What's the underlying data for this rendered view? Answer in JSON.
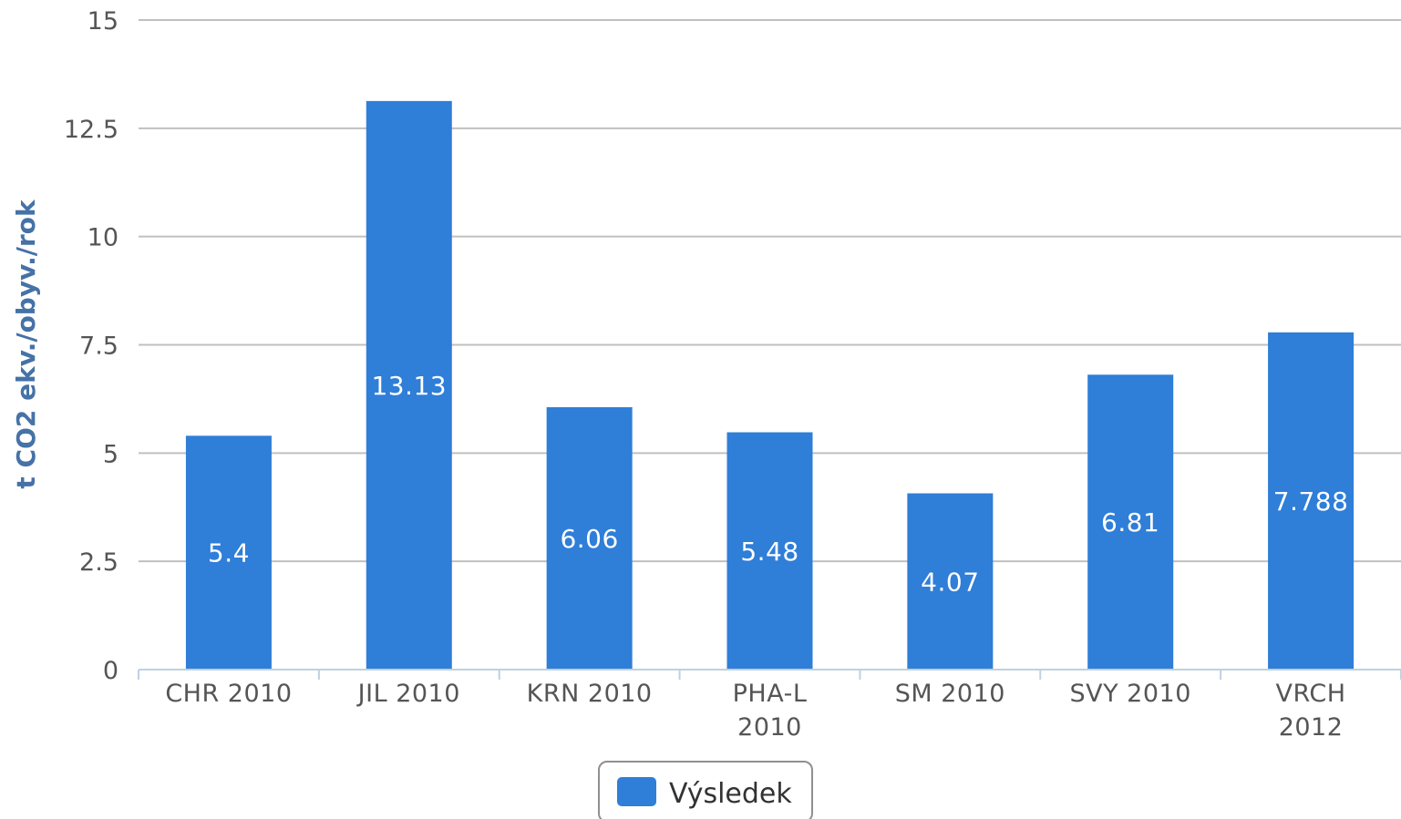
{
  "chart_data": {
    "type": "bar",
    "categories": [
      [
        "CHR 2010"
      ],
      [
        "JIL 2010"
      ],
      [
        "KRN 2010"
      ],
      [
        "PHA-L",
        "2010"
      ],
      [
        "SM 2010"
      ],
      [
        "SVY 2010"
      ],
      [
        "VRCH",
        "2012"
      ]
    ],
    "series": [
      {
        "name": "Výsledek",
        "color": "#2f7ed8",
        "values": [
          5.4,
          13.13,
          6.06,
          5.48,
          4.07,
          6.81,
          7.788
        ],
        "labels": [
          "5.4",
          "13.13",
          "6.06",
          "5.48",
          "4.07",
          "6.81",
          "7.788"
        ]
      }
    ],
    "ylabel": "t CO2 ekv./obyv./rok",
    "ylim": [
      0,
      15
    ],
    "yticks": [
      0,
      2.5,
      5,
      7.5,
      10,
      12.5,
      15
    ],
    "ytick_labels": [
      "0",
      "2.5",
      "5",
      "7.5",
      "10",
      "12.5",
      "15"
    ],
    "grid": true,
    "legend_position": "bottom-center"
  }
}
